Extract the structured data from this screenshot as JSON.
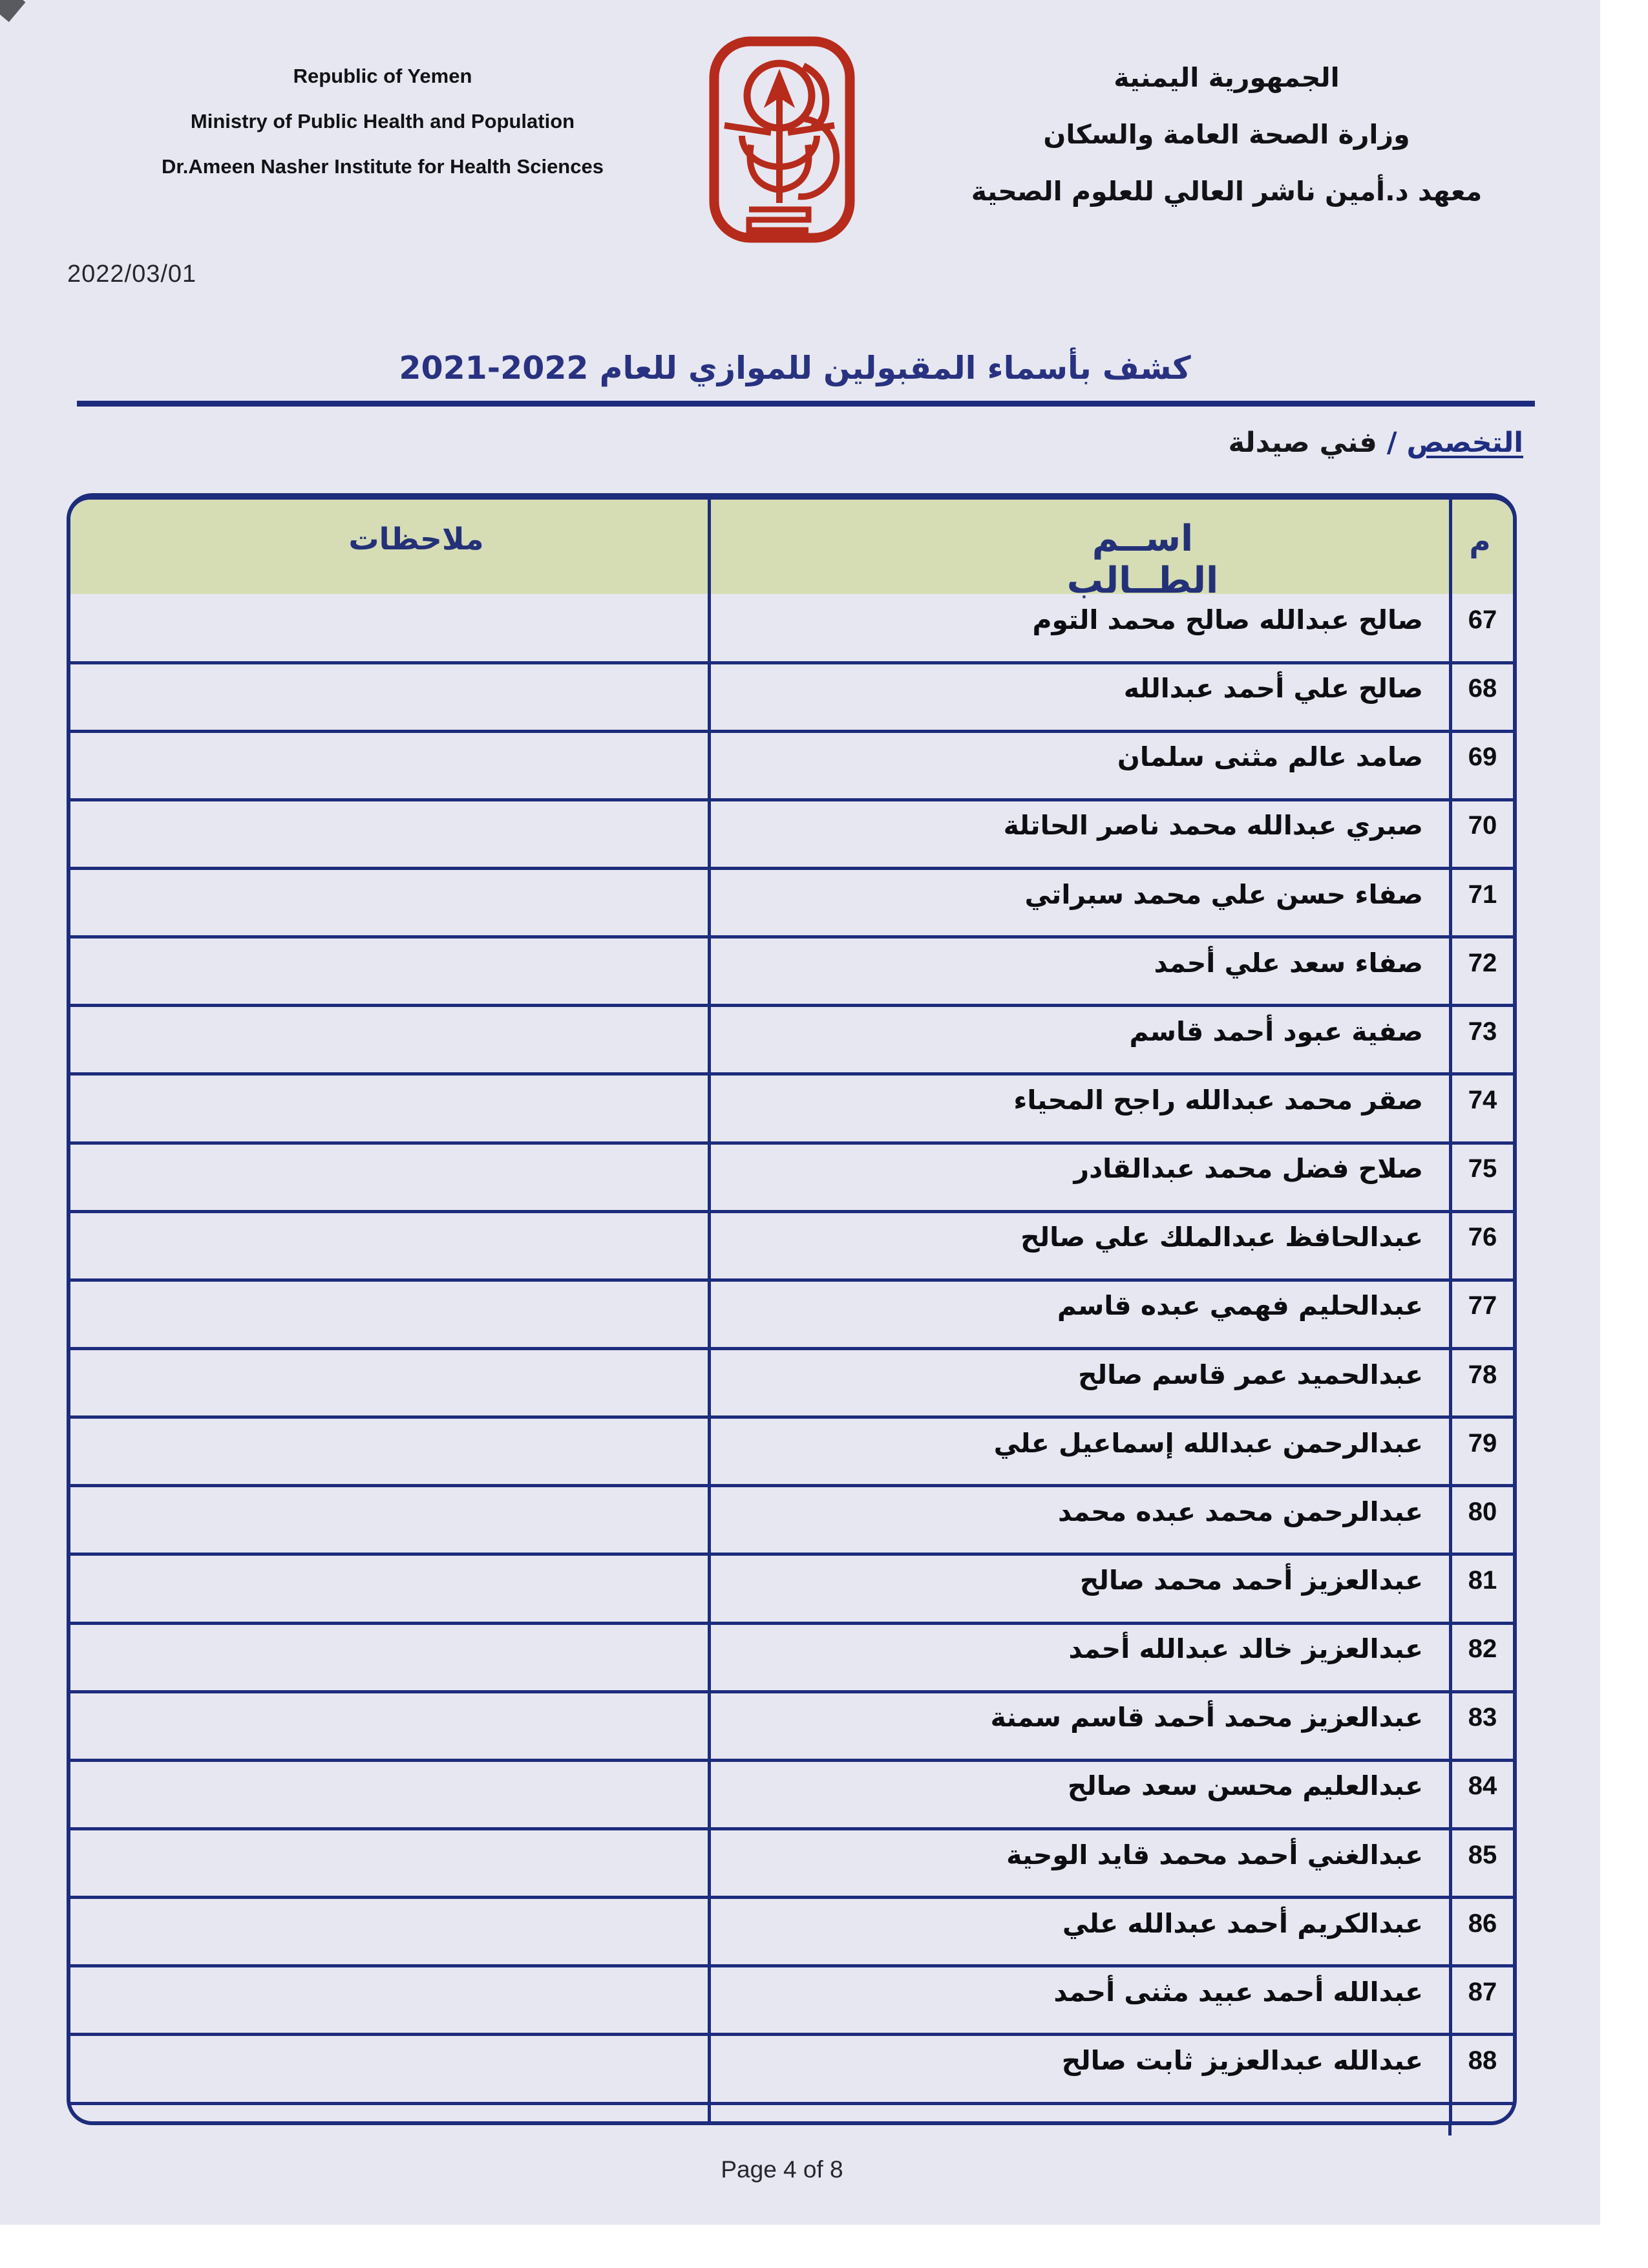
{
  "meta": {
    "date": "2022/03/01",
    "footer": "Page 4 of 8"
  },
  "letterhead": {
    "english": [
      "Republic of Yemen",
      "Ministry of Public Health and Population",
      "Dr.Ameen Nasher Institute for Health Sciences"
    ],
    "arabic": [
      "الجمهورية اليمنية",
      "وزارة الصحة العامة والسكان",
      "معهد د.أمين ناشر العالي للعلوم الصحية"
    ],
    "logo": "institute-emblem-red-caduceus"
  },
  "title": "كشف بأسماء المقبولين للموازي للعام 2022-2021",
  "specialization": {
    "label": "التخصص",
    "separator": "/",
    "value": "فني صيدلة"
  },
  "table": {
    "columns": {
      "notes": "ملاحظات",
      "name": "اســم الطــالب",
      "num": "م"
    },
    "rows": [
      {
        "num": "67",
        "name": "صالح عبدالله صالح محمد التوم",
        "notes": ""
      },
      {
        "num": "68",
        "name": "صالح علي أحمد عبدالله",
        "notes": ""
      },
      {
        "num": "69",
        "name": "صامد عالم مثنى سلمان",
        "notes": ""
      },
      {
        "num": "70",
        "name": "صبري عبدالله محمد ناصر الحاتلة",
        "notes": ""
      },
      {
        "num": "71",
        "name": "صفاء حسن علي محمد سبراتي",
        "notes": ""
      },
      {
        "num": "72",
        "name": "صفاء سعد علي أحمد",
        "notes": ""
      },
      {
        "num": "73",
        "name": "صفية عبود أحمد قاسم",
        "notes": ""
      },
      {
        "num": "74",
        "name": "صقر محمد عبدالله راجح المحياء",
        "notes": ""
      },
      {
        "num": "75",
        "name": "صلاح فضل محمد عبدالقادر",
        "notes": ""
      },
      {
        "num": "76",
        "name": "عبدالحافظ عبدالملك علي صالح",
        "notes": ""
      },
      {
        "num": "77",
        "name": "عبدالحليم فهمي عبده قاسم",
        "notes": ""
      },
      {
        "num": "78",
        "name": "عبدالحميد عمر قاسم صالح",
        "notes": ""
      },
      {
        "num": "79",
        "name": "عبدالرحمن عبدالله إسماعيل علي",
        "notes": ""
      },
      {
        "num": "80",
        "name": "عبدالرحمن محمد عبده محمد",
        "notes": ""
      },
      {
        "num": "81",
        "name": "عبدالعزيز أحمد محمد صالح",
        "notes": ""
      },
      {
        "num": "82",
        "name": "عبدالعزيز خالد عبدالله أحمد",
        "notes": ""
      },
      {
        "num": "83",
        "name": "عبدالعزيز محمد أحمد قاسم سمنة",
        "notes": ""
      },
      {
        "num": "84",
        "name": "عبدالعليم محسن سعد صالح",
        "notes": ""
      },
      {
        "num": "85",
        "name": "عبدالغني أحمد محمد قايد الوحية",
        "notes": ""
      },
      {
        "num": "86",
        "name": "عبدالكريم أحمد عبدالله علي",
        "notes": ""
      },
      {
        "num": "87",
        "name": "عبدالله أحمد عبيد مثنى أحمد",
        "notes": ""
      },
      {
        "num": "88",
        "name": "عبدالله عبدالعزيز ثابت صالح",
        "notes": ""
      }
    ]
  },
  "colors": {
    "paper": "#e7e7f1",
    "table_border": "#1d2c7c",
    "header_fill": "#d6ddb5",
    "header_text": "#243178",
    "title_text": "#283280",
    "body_text": "#0e0e12",
    "logo_red": "#b62b1b"
  }
}
